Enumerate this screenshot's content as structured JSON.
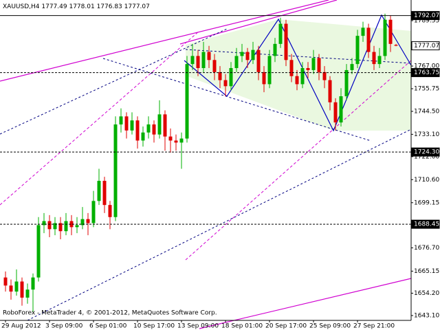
{
  "chart_data": {
    "type": "candlestick",
    "symbol": "XAUUSD,H4",
    "footer": "RoboForex - MetaTrader 4, © 2001-2012, MetaQuotes Software Corp.",
    "up_color": "#00b000",
    "down_color": "#e00000",
    "ylim": [
      1640.7,
      1799.8
    ],
    "yticks": [
      1789.55,
      {
        "value": 1767,
        "label": "1767.00"
      },
      1755.75,
      {
        "value": 1744.5,
        "label": "1744.50"
      },
      {
        "value": 1733.1,
        "label": "1733.10"
      },
      {
        "value": 1722,
        "label": "1722.00"
      },
      {
        "value": 1710.6,
        "label": "1710.60"
      },
      1699.15,
      {
        "value": 1676.7,
        "label": "1676.70"
      },
      1665.15,
      {
        "value": 1654.2,
        "label": "1654.20"
      },
      {
        "value": 1643.1,
        "label": "1643.10"
      }
    ],
    "levels": [
      {
        "value": 1792.07,
        "line": "solid",
        "box": "dark"
      },
      {
        "value": 1777.07,
        "line": "none",
        "box": "light"
      },
      {
        "value": 1763.75,
        "line": "dashed",
        "box": "dark"
      },
      {
        "value": 1724.3,
        "label": "1724.30",
        "line": "dashed",
        "box": "dark"
      },
      {
        "value": 1688.45,
        "line": "dashed",
        "box": "dark"
      }
    ],
    "categories": [
      "29 Aug 2012",
      null,
      null,
      null,
      null,
      null,
      null,
      null,
      "3 Sep 09:00",
      null,
      null,
      null,
      null,
      null,
      null,
      null,
      "6 Sep 01:00",
      null,
      null,
      null,
      null,
      null,
      null,
      null,
      "10 Sep 17:00",
      null,
      null,
      null,
      null,
      null,
      null,
      null,
      "13 Sep 09:00",
      null,
      null,
      null,
      null,
      null,
      null,
      null,
      "18 Sep 01:00",
      null,
      null,
      null,
      null,
      null,
      null,
      null,
      "20 Sep 17:00",
      null,
      null,
      null,
      null,
      null,
      null,
      null,
      "25 Sep 09:00",
      null,
      null,
      null,
      null,
      null,
      null,
      null,
      "27 Sep 21:00",
      null,
      null,
      null,
      null,
      null,
      null,
      null
    ],
    "ohlc": [
      [
        1662,
        1665,
        1655,
        1658
      ],
      [
        1658,
        1661,
        1651,
        1655
      ],
      [
        1655,
        1666,
        1653,
        1660
      ],
      [
        1660,
        1662,
        1648,
        1652
      ],
      [
        1652,
        1659,
        1649,
        1656
      ],
      [
        1656,
        1664,
        1645,
        1662
      ],
      [
        1662,
        1692,
        1660,
        1688
      ],
      [
        1688,
        1694,
        1684,
        1690
      ],
      [
        1690,
        1693,
        1682,
        1686
      ],
      [
        1686,
        1692,
        1683,
        1689
      ],
      [
        1689,
        1692,
        1681,
        1685
      ],
      [
        1685,
        1694,
        1683,
        1690
      ],
      [
        1690,
        1693,
        1683,
        1687
      ],
      [
        1687,
        1692,
        1684,
        1688
      ],
      [
        1688,
        1697,
        1686,
        1691
      ],
      [
        1691,
        1694,
        1683,
        1689
      ],
      [
        1689,
        1705,
        1687,
        1700
      ],
      [
        1700,
        1716,
        1698,
        1710
      ],
      [
        1710,
        1712,
        1694,
        1698
      ],
      [
        1698,
        1700,
        1686,
        1692
      ],
      [
        1692,
        1742,
        1690,
        1738
      ],
      [
        1738,
        1746,
        1734,
        1742
      ],
      [
        1742,
        1744,
        1731,
        1735
      ],
      [
        1735,
        1744,
        1733,
        1740
      ],
      [
        1740,
        1742,
        1726,
        1730
      ],
      [
        1730,
        1737,
        1727,
        1734
      ],
      [
        1734,
        1742,
        1731,
        1738
      ],
      [
        1738,
        1740,
        1729,
        1733
      ],
      [
        1733,
        1750,
        1731,
        1743
      ],
      [
        1743,
        1745,
        1725,
        1732
      ],
      [
        1732,
        1736,
        1724,
        1730
      ],
      [
        1730,
        1733,
        1725,
        1729
      ],
      [
        1729,
        1734,
        1716,
        1731
      ],
      [
        1731,
        1772,
        1729,
        1768
      ],
      [
        1768,
        1778,
        1765,
        1772
      ],
      [
        1772,
        1775,
        1762,
        1766
      ],
      [
        1766,
        1779,
        1764,
        1774
      ],
      [
        1774,
        1777,
        1766,
        1770
      ],
      [
        1770,
        1773,
        1760,
        1764
      ],
      [
        1764,
        1767,
        1756,
        1760
      ],
      [
        1760,
        1763,
        1752,
        1757
      ],
      [
        1757,
        1769,
        1755,
        1766
      ],
      [
        1766,
        1776,
        1764,
        1772
      ],
      [
        1772,
        1778,
        1769,
        1774
      ],
      [
        1774,
        1776,
        1766,
        1770
      ],
      [
        1770,
        1779,
        1768,
        1775
      ],
      [
        1775,
        1777,
        1760,
        1764
      ],
      [
        1764,
        1767,
        1754,
        1758
      ],
      [
        1758,
        1775,
        1756,
        1772
      ],
      [
        1772,
        1781,
        1769,
        1778
      ],
      [
        1778,
        1791,
        1776,
        1788
      ],
      [
        1788,
        1790,
        1767,
        1770
      ],
      [
        1770,
        1773,
        1759,
        1762
      ],
      [
        1762,
        1765,
        1755,
        1758
      ],
      [
        1758,
        1769,
        1756,
        1766
      ],
      [
        1766,
        1769,
        1761,
        1765
      ],
      [
        1765,
        1775,
        1763,
        1771
      ],
      [
        1771,
        1773,
        1760,
        1764
      ],
      [
        1764,
        1767,
        1756,
        1760
      ],
      [
        1760,
        1762,
        1745,
        1749
      ],
      [
        1749,
        1751,
        1735,
        1739
      ],
      [
        1739,
        1756,
        1737,
        1752
      ],
      [
        1752,
        1768,
        1750,
        1765
      ],
      [
        1765,
        1771,
        1763,
        1768
      ],
      [
        1768,
        1785,
        1766,
        1782
      ],
      [
        1782,
        1789,
        1779,
        1786
      ],
      [
        1786,
        1788,
        1771,
        1774
      ],
      [
        1774,
        1777,
        1765,
        1768
      ],
      [
        1768,
        1776,
        1766,
        1772
      ],
      [
        1772,
        1793,
        1770,
        1790
      ],
      [
        1790,
        1792,
        1774,
        1778
      ],
      [
        1777.49,
        1778.01,
        1776.83,
        1777.07
      ]
    ]
  }
}
